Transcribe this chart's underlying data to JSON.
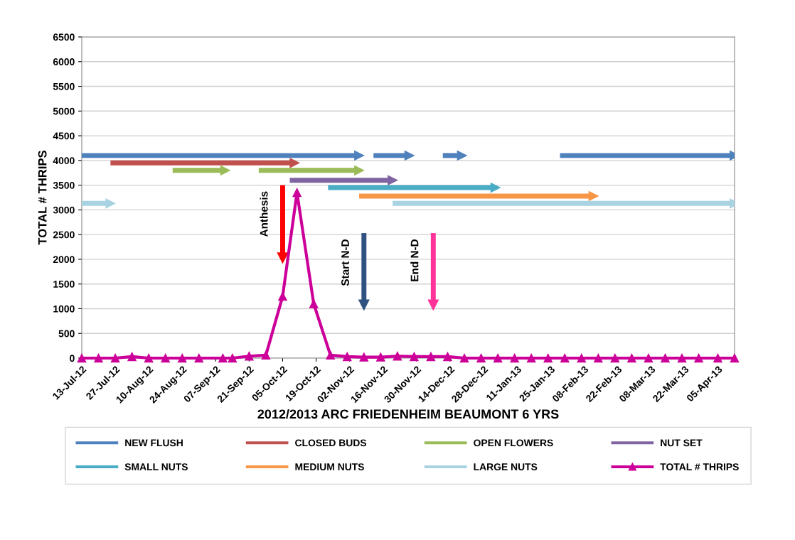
{
  "chart_data": {
    "type": "line",
    "xlabel": "2012/2013 ARC FRIEDENHEIM BEAUMONT 6 YRS",
    "ylabel": "TOTAL # THRIPS",
    "ylim": [
      0,
      6500
    ],
    "yticks": [
      0,
      500,
      1000,
      1500,
      2000,
      2500,
      3000,
      3500,
      4000,
      4500,
      5000,
      5500,
      6000,
      6500
    ],
    "xlim": [
      "2012-07-13",
      "2013-04-12"
    ],
    "xticks": [
      {
        "value": "2012-07-13",
        "label": "13-Jul-12"
      },
      {
        "value": "2012-07-27",
        "label": "27-Jul-12"
      },
      {
        "value": "2012-08-10",
        "label": "10-Aug-12"
      },
      {
        "value": "2012-08-24",
        "label": "24-Aug-12"
      },
      {
        "value": "2012-09-07",
        "label": "07-Sep-12"
      },
      {
        "value": "2012-09-21",
        "label": "21-Sep-12"
      },
      {
        "value": "2012-10-05",
        "label": "05-Oct-12"
      },
      {
        "value": "2012-10-19",
        "label": "19-Oct-12"
      },
      {
        "value": "2012-11-02",
        "label": "02-Nov-12"
      },
      {
        "value": "2012-11-16",
        "label": "16-Nov-12"
      },
      {
        "value": "2012-11-30",
        "label": "30-Nov-12"
      },
      {
        "value": "2012-12-14",
        "label": "14-Dec-12"
      },
      {
        "value": "2012-12-28",
        "label": "28-Dec-12"
      },
      {
        "value": "2013-01-11",
        "label": "11-Jan-13"
      },
      {
        "value": "2013-01-25",
        "label": "25-Jan-13"
      },
      {
        "value": "2013-02-08",
        "label": "08-Feb-13"
      },
      {
        "value": "2013-02-22",
        "label": "22-Feb-13"
      },
      {
        "value": "2013-03-08",
        "label": "08-Mar-13"
      },
      {
        "value": "2013-03-22",
        "label": "22-Mar-13"
      },
      {
        "value": "2013-04-05",
        "label": "05-Apr-13"
      }
    ],
    "grid": "y",
    "legend": "bottom",
    "series": [
      {
        "name": "NEW FLUSH",
        "color": "#4f81bd",
        "marker": "triangle",
        "x": [
          "2012-07-13",
          "2012-11-06"
        ],
        "values": [
          4100,
          4100
        ]
      },
      {
        "color": "#4f81bd",
        "marker": "triangle",
        "x": [
          "2012-11-12",
          "2012-11-27"
        ],
        "values": [
          4100,
          4100
        ]
      },
      {
        "color": "#4f81bd",
        "marker": "triangle",
        "x": [
          "2012-12-11",
          "2012-12-19"
        ],
        "values": [
          4100,
          4100
        ]
      },
      {
        "color": "#4f81bd",
        "marker": "triangle",
        "x": [
          "2013-01-29",
          "2013-04-12"
        ],
        "values": [
          4100,
          4100
        ]
      },
      {
        "name": "CLOSED BUDS",
        "color": "#c0504d",
        "marker": "triangle",
        "x": [
          "2012-07-25",
          "2012-10-10"
        ],
        "values": [
          3950,
          3950
        ]
      },
      {
        "name": "OPEN FLOWERS",
        "color": "#9bbb59",
        "marker": "triangle",
        "x": [
          "2012-08-20",
          "2012-09-11"
        ],
        "values": [
          3800,
          3800
        ]
      },
      {
        "color": "#9bbb59",
        "marker": "triangle",
        "x": [
          "2012-09-25",
          "2012-11-06"
        ],
        "values": [
          3800,
          3800
        ]
      },
      {
        "name": "NUT SET",
        "color": "#8064a2",
        "marker": "triangle",
        "x": [
          "2012-10-08",
          "2012-11-20"
        ],
        "values": [
          3600,
          3600
        ]
      },
      {
        "name": "SMALL NUTS",
        "color": "#4bacc6",
        "marker": "triangle",
        "x": [
          "2012-10-24",
          "2013-01-02"
        ],
        "values": [
          3450,
          3450
        ]
      },
      {
        "name": "MEDIUM NUTS",
        "color": "#f79646",
        "marker": "triangle",
        "x": [
          "2012-11-06",
          "2013-02-12"
        ],
        "values": [
          3280,
          3280
        ]
      },
      {
        "name": "LARGE NUTS",
        "color": "#a9d3e3",
        "marker": "triangle",
        "x": [
          "2012-07-13",
          "2012-07-25"
        ],
        "values": [
          3130,
          3130
        ]
      },
      {
        "color": "#a9d3e3",
        "marker": "triangle",
        "x": [
          "2012-11-20",
          "2013-04-12"
        ],
        "values": [
          3130,
          3130
        ]
      },
      {
        "name": "TOTAL # THRIPS",
        "color": "#cc0099",
        "marker": "triangle",
        "x": [
          "2012-07-13",
          "2012-07-20",
          "2012-07-27",
          "2012-08-03",
          "2012-08-10",
          "2012-08-17",
          "2012-08-24",
          "2012-08-31",
          "2012-09-10",
          "2012-09-14",
          "2012-09-21",
          "2012-09-28",
          "2012-10-05",
          "2012-10-11",
          "2012-10-18",
          "2012-10-25",
          "2012-11-01",
          "2012-11-08",
          "2012-11-15",
          "2012-11-22",
          "2012-11-29",
          "2012-12-06",
          "2012-12-13",
          "2012-12-20",
          "2012-12-27",
          "2013-01-03",
          "2013-01-10",
          "2013-01-17",
          "2013-01-24",
          "2013-01-31",
          "2013-02-07",
          "2013-02-14",
          "2013-02-21",
          "2013-02-28",
          "2013-03-07",
          "2013-03-14",
          "2013-03-21",
          "2013-03-28",
          "2013-04-05",
          "2013-04-12"
        ],
        "values": [
          0,
          0,
          0,
          30,
          0,
          0,
          0,
          0,
          0,
          0,
          40,
          60,
          1250,
          3350,
          1100,
          60,
          30,
          20,
          20,
          40,
          30,
          30,
          30,
          0,
          0,
          0,
          0,
          0,
          0,
          0,
          0,
          0,
          0,
          0,
          0,
          0,
          0,
          0,
          0,
          0
        ]
      }
    ],
    "ref_lines": [
      {
        "axis": "x",
        "value": "2012-10-05",
        "label": "Anthesis",
        "color": "#ff0000"
      },
      {
        "axis": "x",
        "value": "2012-11-08",
        "label": "Start N-D",
        "color": "#2f5280"
      },
      {
        "axis": "x",
        "value": "2012-12-07",
        "label": "End N-D",
        "color": "#ff3399"
      }
    ]
  }
}
